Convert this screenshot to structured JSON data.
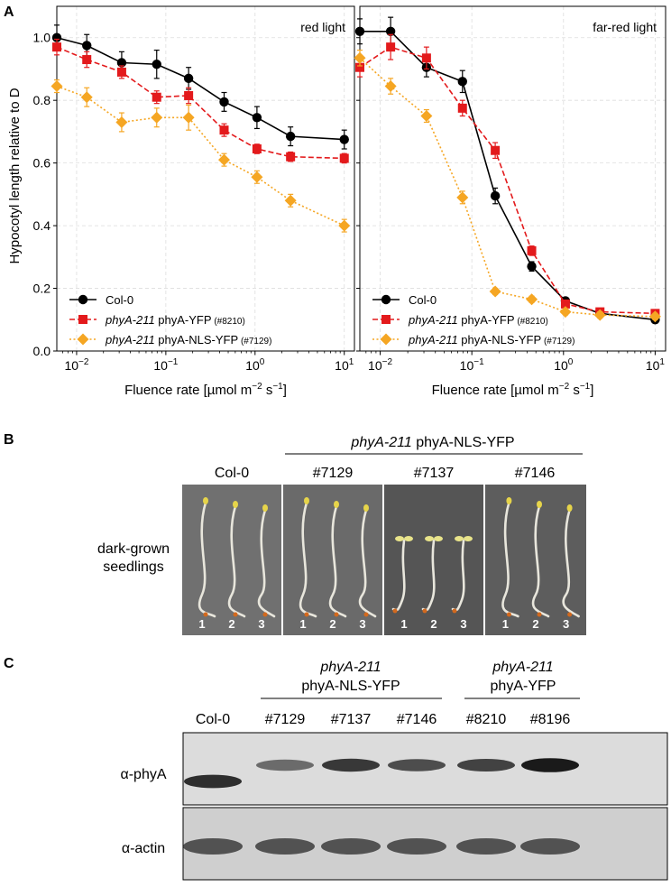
{
  "panel_labels": {
    "a": "A",
    "b": "B",
    "c": "C"
  },
  "chart_data": [
    {
      "type": "line",
      "panel_title": "red light",
      "xscale": "log",
      "xlim": [
        0.006,
        13
      ],
      "ylim": [
        0.0,
        1.1
      ],
      "yticks": [
        0.0,
        0.2,
        0.4,
        0.6,
        0.8,
        1.0
      ],
      "xticks": [
        0.01,
        0.1,
        1,
        10
      ],
      "ylabel": "Hypocotyl length relative to D",
      "xlabel": "Fluence rate [µmol m⁻² s⁻¹]",
      "x": [
        0.006,
        0.013,
        0.032,
        0.079,
        0.18,
        0.45,
        1.05,
        2.5,
        10
      ],
      "series": [
        {
          "name": "Col-0",
          "values": [
            1.0,
            0.975,
            0.92,
            0.915,
            0.87,
            0.795,
            0.745,
            0.685,
            0.675
          ],
          "err": [
            0.04,
            0.035,
            0.035,
            0.045,
            0.035,
            0.03,
            0.035,
            0.03,
            0.03
          ]
        },
        {
          "name": "phyA-211 phyA-YFP (#8210)",
          "values": [
            0.97,
            0.93,
            0.89,
            0.81,
            0.815,
            0.705,
            0.645,
            0.62,
            0.615
          ],
          "err": [
            0.025,
            0.025,
            0.02,
            0.02,
            0.025,
            0.02,
            0.015,
            0.015,
            0.015
          ]
        },
        {
          "name": "phyA-211 phyA-NLS-YFP (#7129)",
          "values": [
            0.845,
            0.81,
            0.73,
            0.745,
            0.745,
            0.61,
            0.555,
            0.48,
            0.4
          ],
          "err": [
            0.02,
            0.03,
            0.03,
            0.03,
            0.04,
            0.02,
            0.02,
            0.02,
            0.02
          ]
        }
      ]
    },
    {
      "type": "line",
      "panel_title": "far-red light",
      "xscale": "log",
      "xlim": [
        0.006,
        13
      ],
      "ylim": [
        0.0,
        1.1
      ],
      "yticks": [
        0.0,
        0.2,
        0.4,
        0.6,
        0.8,
        1.0
      ],
      "xticks": [
        0.01,
        0.1,
        1,
        10
      ],
      "ylabel": "",
      "xlabel": "Fluence rate [µmol m⁻² s⁻¹]",
      "x": [
        0.006,
        0.013,
        0.032,
        0.079,
        0.18,
        0.45,
        1.05,
        2.5,
        10
      ],
      "series": [
        {
          "name": "Col-0",
          "values": [
            1.02,
            1.02,
            0.905,
            0.86,
            0.495,
            0.27,
            0.16,
            0.12,
            0.1
          ],
          "err": [
            0.04,
            0.045,
            0.03,
            0.035,
            0.025,
            0.015,
            0.01,
            0.01,
            0.01
          ]
        },
        {
          "name": "phyA-211 phyA-YFP (#8210)",
          "values": [
            0.905,
            0.97,
            0.935,
            0.775,
            0.64,
            0.32,
            0.15,
            0.125,
            0.12
          ],
          "err": [
            0.03,
            0.04,
            0.035,
            0.025,
            0.025,
            0.015,
            0.01,
            0.01,
            0.01
          ]
        },
        {
          "name": "phyA-211 phyA-NLS-YFP (#7129)",
          "values": [
            0.935,
            0.845,
            0.75,
            0.49,
            0.19,
            0.165,
            0.125,
            0.115,
            0.11
          ],
          "err": [
            0.025,
            0.025,
            0.02,
            0.02,
            0.01,
            0.01,
            0.01,
            0.01,
            0.01
          ]
        }
      ]
    }
  ],
  "legend": {
    "col0": "Col-0",
    "mutant": "phyA-211",
    "yfp": "phyA-YFP",
    "yfp_id": "(#8210)",
    "nls": "phyA-NLS-YFP",
    "nls_id": "(#7129)"
  },
  "axis_text": {
    "xlabel_main": "Fluence rate [µmol m",
    "xlabel_exp1": "−2",
    "xlabel_s": " s",
    "xlabel_exp2": "−1",
    "xlabel_close": "]",
    "tick_base": "10",
    "tick_exps": [
      "−2",
      "−1",
      "0",
      "1"
    ],
    "ytick_labels": [
      "0.0",
      "0.2",
      "0.4",
      "0.6",
      "0.8",
      "1.0"
    ]
  },
  "panel_b": {
    "group_mutant": "phyA-211",
    "group_construct": "phyA-NLS-YFP",
    "columns": [
      "Col-0",
      "#7129",
      "#7137",
      "#7146"
    ],
    "row_label_1": "dark-grown",
    "row_label_2": "seedlings",
    "seedling_numbers": [
      "1",
      "2",
      "3"
    ]
  },
  "panel_c": {
    "group1_mutant": "phyA-211",
    "group1_construct": "phyA-NLS-YFP",
    "group2_mutant": "phyA-211",
    "group2_construct": "phyA-YFP",
    "lanes": [
      "Col-0",
      "#7129",
      "#7137",
      "#7146",
      "#8210",
      "#8196"
    ],
    "blot1_label": "α-phyA",
    "blot2_label": "α-actin",
    "phyA_band_intensity": [
      0.85,
      0.55,
      0.8,
      0.7,
      0.75,
      0.95
    ]
  },
  "colors": {
    "col0": "#000000",
    "yfp": "#e31a1c",
    "nls": "#f5a623",
    "grid": "#dddddd"
  }
}
